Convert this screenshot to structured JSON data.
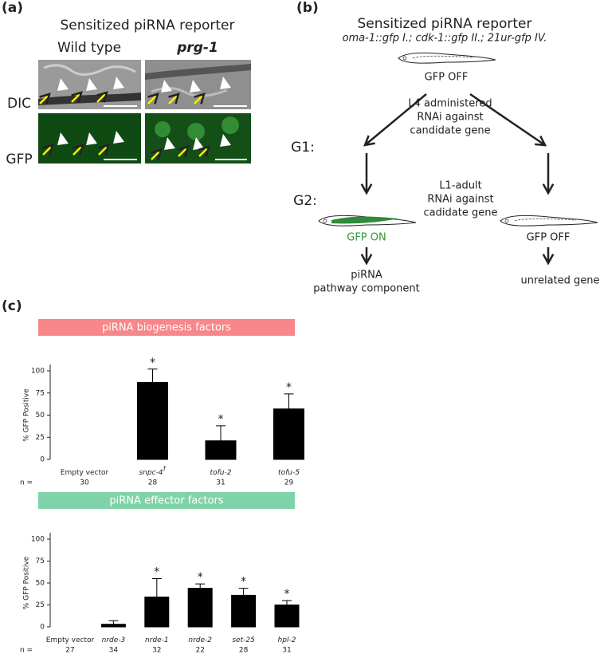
{
  "panel_labels": [
    "(a)",
    "(b)",
    "(c)"
  ],
  "panel_a": {
    "title": "Sensitized piRNA reporter",
    "columns": [
      "Wild type",
      "prg-1"
    ],
    "rows": [
      "DIC",
      "GFP"
    ]
  },
  "panel_b": {
    "title": "Sensitized piRNA reporter",
    "genotype": "oma-1::gfp I.; cdk-1::gfp II.; 21ur-gfp IV.",
    "top_state": "GFP OFF",
    "generations": [
      "G1:",
      "G2:"
    ],
    "g1_treatment": [
      "L4 administered",
      "RNAi against",
      "candidate gene"
    ],
    "g2_treatment": [
      "L1-adult",
      "RNAi against",
      "cadidate gene"
    ],
    "left_state": "GFP ON",
    "right_state": "GFP OFF",
    "left_outcome": [
      "piRNA",
      "pathway component"
    ],
    "right_outcome": "unrelated gene"
  },
  "chart_data": [
    {
      "type": "bar",
      "title": "piRNA biogenesis factors",
      "y_label": "% GFP Positive",
      "color": "#000000",
      "banner_color": "#f7878a",
      "categories": [
        "Empty vector",
        "snpc-4",
        "tofu-2",
        "tofu-5"
      ],
      "superscripts": [
        null,
        "†",
        null,
        null
      ],
      "values": [
        0,
        87,
        21,
        57
      ],
      "errors": [
        0,
        15,
        17,
        17
      ],
      "significance": [
        null,
        "*",
        "*",
        "*"
      ],
      "n_label": "n =",
      "n": [
        30,
        28,
        31,
        29
      ],
      "ylim": [
        0,
        100
      ],
      "yticks": [
        0,
        25,
        50,
        75,
        100
      ]
    },
    {
      "type": "bar",
      "title": "piRNA effector factors",
      "y_label": "% GFP Positive",
      "color": "#000000",
      "banner_color": "#7fd3a9",
      "categories": [
        "Empty vector",
        "nrde-3",
        "nrde-1",
        "nrde-2",
        "set-25",
        "hpl-2"
      ],
      "superscripts": [
        null,
        null,
        null,
        null,
        null,
        null
      ],
      "values": [
        0,
        3,
        34,
        44,
        36,
        25
      ],
      "errors": [
        0,
        4,
        21,
        5,
        8,
        5
      ],
      "significance": [
        null,
        null,
        "*",
        "*",
        "*",
        "*"
      ],
      "n_label": "n =",
      "n": [
        27,
        34,
        32,
        22,
        28,
        31
      ],
      "ylim": [
        0,
        100
      ],
      "yticks": [
        0,
        25,
        50,
        75,
        100
      ]
    }
  ]
}
